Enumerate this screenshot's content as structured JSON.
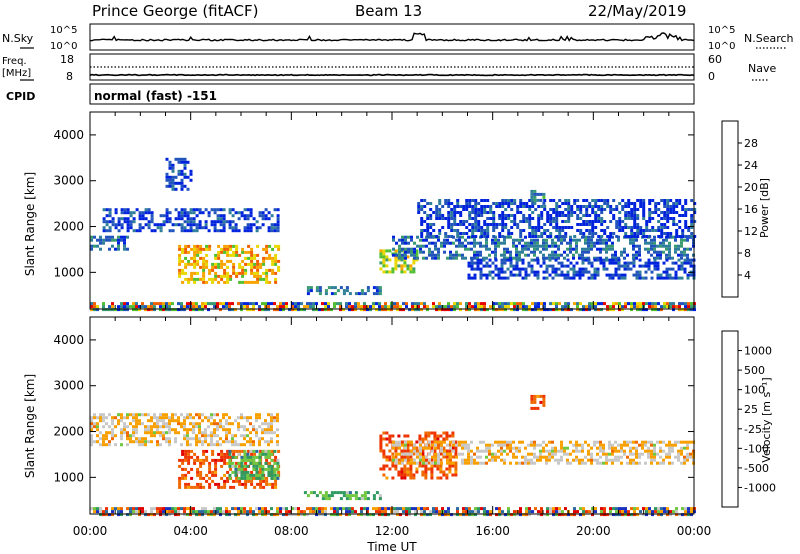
{
  "header": {
    "station": "Prince George (fitACF)",
    "beam": "Beam 13",
    "date": "22/May/2019"
  },
  "noise_panel": {
    "left_label": "N.Sky",
    "right_label": "N.Search",
    "scale_max": "10^5",
    "scale_min": "10^0"
  },
  "freq_panel": {
    "left_label_1": "Freq.",
    "left_label_2": "[MHz]",
    "left_ticks": [
      "18",
      "8"
    ],
    "right_label": "Nave",
    "right_ticks": [
      "60",
      "0"
    ]
  },
  "cpid_panel": {
    "label": "CPID",
    "value": "normal (fast) -151"
  },
  "colors": {
    "power_scale": [
      "#0022dd",
      "#2255bb",
      "#2f7f9a",
      "#3a9a70",
      "#50c030",
      "#e8d800",
      "#f7a300",
      "#f06000",
      "#e80000"
    ],
    "velocity_scale": [
      "#e00000",
      "#ee3300",
      "#f06800",
      "#f7a000",
      "#c8c8c8",
      "#70c840",
      "#2f9a60",
      "#2a6aa0",
      "#1a30c0"
    ]
  },
  "chart_data": [
    {
      "type": "heatmap",
      "title": "",
      "xlabel": "Time UT",
      "ylabel": "Slant Range [km]",
      "x_ticks": [
        "00:00",
        "04:00",
        "08:00",
        "12:00",
        "16:00",
        "20:00",
        "00:00"
      ],
      "x_range_hours": [
        0,
        24
      ],
      "y_ticks": [
        "1000",
        "2000",
        "3000",
        "4000"
      ],
      "y_range_km": [
        200,
        4500
      ],
      "colorbar": {
        "label": "Power [dB]",
        "range": [
          0,
          32
        ],
        "ticks": [
          "28",
          "24",
          "20",
          "16",
          "12",
          "8",
          "4"
        ]
      },
      "features": [
        {
          "start_hour": 0.0,
          "end_hour": 24.0,
          "range_km": [
            200,
            350
          ],
          "level": "mixed"
        },
        {
          "start_hour": 0.0,
          "end_hour": 1.5,
          "range_km": [
            1500,
            1800
          ],
          "level": 10
        },
        {
          "start_hour": 0.5,
          "end_hour": 7.5,
          "range_km": [
            1900,
            2400
          ],
          "level": 8
        },
        {
          "start_hour": 3.5,
          "end_hour": 7.5,
          "range_km": [
            800,
            1600
          ],
          "level": 28
        },
        {
          "start_hour": 3.0,
          "end_hour": 4.0,
          "range_km": [
            2800,
            3500
          ],
          "level": 6
        },
        {
          "start_hour": 8.5,
          "end_hour": 11.5,
          "range_km": [
            550,
            700
          ],
          "level": 12
        },
        {
          "start_hour": 11.5,
          "end_hour": 13.0,
          "range_km": [
            1000,
            1500
          ],
          "level": 22
        },
        {
          "start_hour": 12.0,
          "end_hour": 24.0,
          "range_km": [
            1300,
            1800
          ],
          "level": 10
        },
        {
          "start_hour": 15.0,
          "end_hour": 24.0,
          "range_km": [
            900,
            1300
          ],
          "level": 8
        },
        {
          "start_hour": 13.0,
          "end_hour": 24.0,
          "range_km": [
            1800,
            2600
          ],
          "level": 6
        },
        {
          "start_hour": 17.5,
          "end_hour": 18.0,
          "range_km": [
            2500,
            2800
          ],
          "level": 14
        }
      ]
    },
    {
      "type": "heatmap",
      "title": "",
      "xlabel": "Time UT",
      "ylabel": "Slant Range [km]",
      "x_ticks": [
        "00:00",
        "04:00",
        "08:00",
        "12:00",
        "16:00",
        "20:00",
        "00:00"
      ],
      "x_range_hours": [
        0,
        24
      ],
      "y_ticks": [
        "1000",
        "2000",
        "3000",
        "4000"
      ],
      "y_range_km": [
        200,
        4500
      ],
      "colorbar": {
        "label": "Velocity [m s⁻¹]",
        "labels": [
          "1000",
          "500",
          "100",
          "25",
          "-25",
          "-100",
          "-500",
          "-1000"
        ]
      },
      "features": [
        {
          "start_hour": 0.0,
          "end_hour": 24.0,
          "range_km": [
            200,
            350
          ],
          "velocity": "mixed"
        },
        {
          "start_hour": 0.0,
          "end_hour": 7.5,
          "range_km": [
            1700,
            2400
          ],
          "velocity": 0
        },
        {
          "start_hour": 3.5,
          "end_hour": 7.5,
          "range_km": [
            800,
            1600
          ],
          "velocity": -300
        },
        {
          "start_hour": 5.5,
          "end_hour": 7.5,
          "range_km": [
            1000,
            1600
          ],
          "velocity": 200
        },
        {
          "start_hour": 8.5,
          "end_hour": 11.5,
          "range_km": [
            550,
            700
          ],
          "velocity": 150
        },
        {
          "start_hour": 11.5,
          "end_hour": 14.5,
          "range_km": [
            1000,
            2000
          ],
          "velocity": -200
        },
        {
          "start_hour": 12.0,
          "end_hour": 24.0,
          "range_km": [
            1300,
            1800
          ],
          "velocity": 0
        },
        {
          "start_hour": 17.5,
          "end_hour": 18.0,
          "range_km": [
            2500,
            2800
          ],
          "velocity": -150
        }
      ]
    }
  ]
}
